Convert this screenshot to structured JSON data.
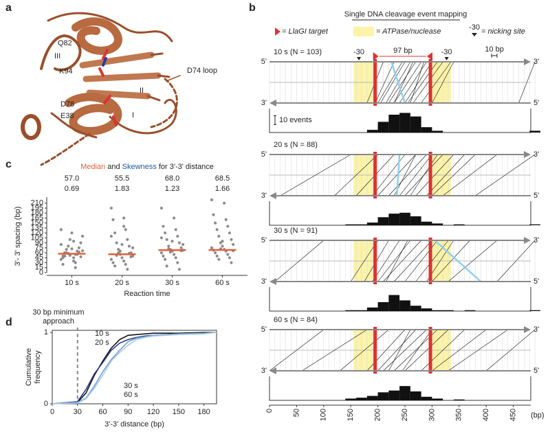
{
  "panel_labels": [
    "a",
    "b",
    "c",
    "d"
  ],
  "structure_labels": [
    "Q82",
    "III",
    "K94",
    "D74 loop",
    "II",
    "D78",
    "E38",
    "I"
  ],
  "chart_data": [
    {
      "type": "strip",
      "title_parts": [
        "Median",
        "and",
        "Skewness",
        "for 3'-3' distance"
      ],
      "median_color": "#e0603a",
      "skew_color": "#2456a4",
      "point_color": "#8c8c8c",
      "categories": [
        "10 s",
        "20 s",
        "30 s",
        "60 s"
      ],
      "points": [
        [
          40,
          45,
          50,
          55,
          60,
          65,
          70,
          75,
          80,
          90,
          100,
          110,
          120,
          130,
          35,
          25,
          15,
          50,
          55,
          60,
          62,
          58,
          48,
          52,
          66,
          72,
          85,
          95,
          45,
          30
        ],
        [
          195,
          165,
          160,
          130,
          120,
          100,
          90,
          80,
          70,
          60,
          55,
          50,
          45,
          40,
          35,
          30,
          25,
          20,
          10,
          52,
          58,
          60,
          48,
          65,
          75,
          85,
          110,
          140
        ],
        [
          195,
          165,
          140,
          130,
          120,
          110,
          100,
          90,
          80,
          75,
          70,
          68,
          65,
          60,
          55,
          50,
          45,
          40,
          30,
          20,
          10,
          72,
          66,
          62,
          85,
          95,
          105
        ],
        [
          220,
          210,
          175,
          160,
          150,
          140,
          130,
          120,
          110,
          100,
          90,
          85,
          80,
          75,
          70,
          68,
          65,
          60,
          55,
          50,
          45,
          40,
          30,
          72,
          66,
          95
        ]
      ],
      "values": [
        57,
        55.5,
        68,
        68.5
      ],
      "value_labels": [
        "57.0",
        "55.5",
        "68.0",
        "68.5"
      ],
      "skewness": [
        0.69,
        1.83,
        1.23,
        1.66
      ],
      "ylabel": "3'- 3' spacing (bp)",
      "xlabel": "Reaction time",
      "ylim": [
        0,
        220
      ],
      "yticks": [
        0,
        15,
        30,
        45,
        60,
        75,
        90,
        105,
        120,
        135,
        150,
        165,
        180,
        195,
        210
      ]
    },
    {
      "type": "line",
      "annotation": [
        "30 bp minimum",
        "approach"
      ],
      "threshold": 30,
      "x": [
        0,
        30,
        40,
        50,
        60,
        70,
        80,
        90,
        100,
        110,
        120,
        150,
        180,
        195
      ],
      "series": [
        {
          "name": "10 s",
          "color": "#111111",
          "values": [
            0,
            0.02,
            0.15,
            0.4,
            0.6,
            0.78,
            0.9,
            0.96,
            0.97,
            0.98,
            0.99,
            0.99,
            1,
            1
          ]
        },
        {
          "name": "20 s",
          "color": "#2a3a8c",
          "values": [
            0,
            0.03,
            0.2,
            0.42,
            0.58,
            0.75,
            0.85,
            0.9,
            0.93,
            0.95,
            0.96,
            0.98,
            0.99,
            1
          ]
        },
        {
          "name": "30 s",
          "color": "#6f9fd0",
          "values": [
            0,
            0.02,
            0.08,
            0.25,
            0.45,
            0.62,
            0.75,
            0.87,
            0.92,
            0.94,
            0.96,
            0.98,
            0.99,
            1
          ]
        },
        {
          "name": "60 s",
          "color": "#a9c8e8",
          "values": [
            0,
            0.01,
            0.07,
            0.22,
            0.4,
            0.6,
            0.72,
            0.82,
            0.9,
            0.93,
            0.95,
            0.97,
            0.98,
            1
          ]
        }
      ],
      "xlim": [
        0,
        195
      ],
      "ylim": [
        0,
        1.03
      ],
      "xticks": [
        0,
        30,
        60,
        90,
        120,
        150,
        180
      ],
      "yticks": [
        0,
        1
      ],
      "xlabel": "3'-3' distance (bp)",
      "ylabel": [
        "Cumulative",
        "frequency"
      ]
    },
    {
      "type": "event-map",
      "title": "Single DNA cleavage event mapping",
      "legend": [
        "= LlaGI target",
        "= ATPase/nuclease",
        "-30",
        "= nicking site"
      ],
      "target_sites": [
        195,
        297
      ],
      "spacing_label": "97 bp",
      "scale_label": "10 bp",
      "atpase_regions": [
        [
          155,
          195
        ],
        [
          297,
          335
        ]
      ],
      "strand_5": "5'",
      "strand_3": "3'",
      "hist_scale_label": "10 events",
      "hist_scale": 10,
      "highlight_color": "#8fd0ee",
      "xlim": [
        0,
        500
      ],
      "xticks": [
        0,
        50,
        100,
        150,
        200,
        250,
        300,
        350,
        400,
        450
      ],
      "x_unit": "(bp)",
      "bins": [
        0,
        20,
        40,
        60,
        80,
        100,
        120,
        140,
        160,
        180,
        200,
        220,
        240,
        260,
        280,
        300,
        320,
        340,
        360,
        380,
        400,
        420,
        440,
        460,
        480,
        500
      ],
      "panels": [
        {
          "title": "10 s (N = 103)",
          "events": [
            [
              210,
              180
            ],
            [
              230,
              195
            ],
            [
              250,
              205
            ],
            [
              260,
              215
            ],
            [
              270,
              220
            ],
            [
              280,
              230
            ],
            [
              290,
              240
            ],
            [
              300,
              250
            ],
            [
              310,
              255
            ],
            [
              320,
              265
            ],
            [
              335,
              280
            ],
            [
              245,
              200
            ],
            [
              265,
              230
            ],
            [
              285,
              260
            ],
            [
              340,
              300
            ],
            [
              490,
              460
            ]
          ],
          "highlight": [
            [
              225,
              250
            ]
          ],
          "counts": [
            0,
            0,
            0,
            0,
            0,
            0,
            0,
            0,
            0,
            3,
            12,
            20,
            22,
            18,
            6,
            2,
            0,
            0,
            0,
            0,
            0,
            0,
            0,
            0,
            2
          ]
        },
        {
          "title": "20 s (N = 88)",
          "events": [
            [
              150,
              20
            ],
            [
              200,
              120
            ],
            [
              230,
              160
            ],
            [
              250,
              190
            ],
            [
              270,
              200
            ],
            [
              290,
              220
            ],
            [
              300,
              240
            ],
            [
              320,
              250
            ],
            [
              340,
              270
            ],
            [
              360,
              290
            ],
            [
              380,
              300
            ],
            [
              420,
              320
            ],
            [
              490,
              380
            ],
            [
              270,
              230
            ],
            [
              310,
              260
            ]
          ],
          "highlight": [
            [
              240,
              235
            ]
          ],
          "counts": [
            0,
            0,
            0,
            0,
            0,
            0,
            0,
            1,
            1,
            3,
            9,
            13,
            14,
            10,
            4,
            2,
            0,
            1,
            0,
            0,
            0,
            0,
            0,
            0,
            1
          ]
        },
        {
          "title": "30 s (N = 91)",
          "events": [
            [
              100,
              10
            ],
            [
              200,
              150
            ],
            [
              220,
              175
            ],
            [
              240,
              190
            ],
            [
              260,
              200
            ],
            [
              280,
              210
            ],
            [
              300,
              230
            ],
            [
              310,
              250
            ],
            [
              330,
              270
            ],
            [
              340,
              290
            ],
            [
              370,
              300
            ],
            [
              420,
              330
            ],
            [
              490,
              420
            ],
            [
              255,
              215
            ]
          ],
          "highlight": [
            [
              305,
              390
            ]
          ],
          "counts": [
            0,
            0,
            0,
            0,
            0,
            0,
            0,
            1,
            1,
            4,
            10,
            18,
            12,
            6,
            3,
            1,
            1,
            0,
            1,
            0,
            0,
            0,
            0,
            0,
            1
          ]
        },
        {
          "title": "60 s (N = 84)",
          "events": [
            [
              100,
              0
            ],
            [
              180,
              60
            ],
            [
              220,
              130
            ],
            [
              250,
              180
            ],
            [
              270,
              200
            ],
            [
              290,
              210
            ],
            [
              310,
              230
            ],
            [
              330,
              250
            ],
            [
              360,
              280
            ],
            [
              400,
              300
            ],
            [
              440,
              330
            ],
            [
              490,
              400
            ],
            [
              260,
              220
            ],
            [
              300,
              245
            ]
          ],
          "highlight": [],
          "counts": [
            0,
            0,
            0,
            0,
            0,
            0,
            0,
            2,
            3,
            5,
            9,
            11,
            16,
            10,
            4,
            2,
            0,
            1,
            0,
            0,
            0,
            0,
            0,
            0,
            0
          ]
        }
      ]
    }
  ]
}
